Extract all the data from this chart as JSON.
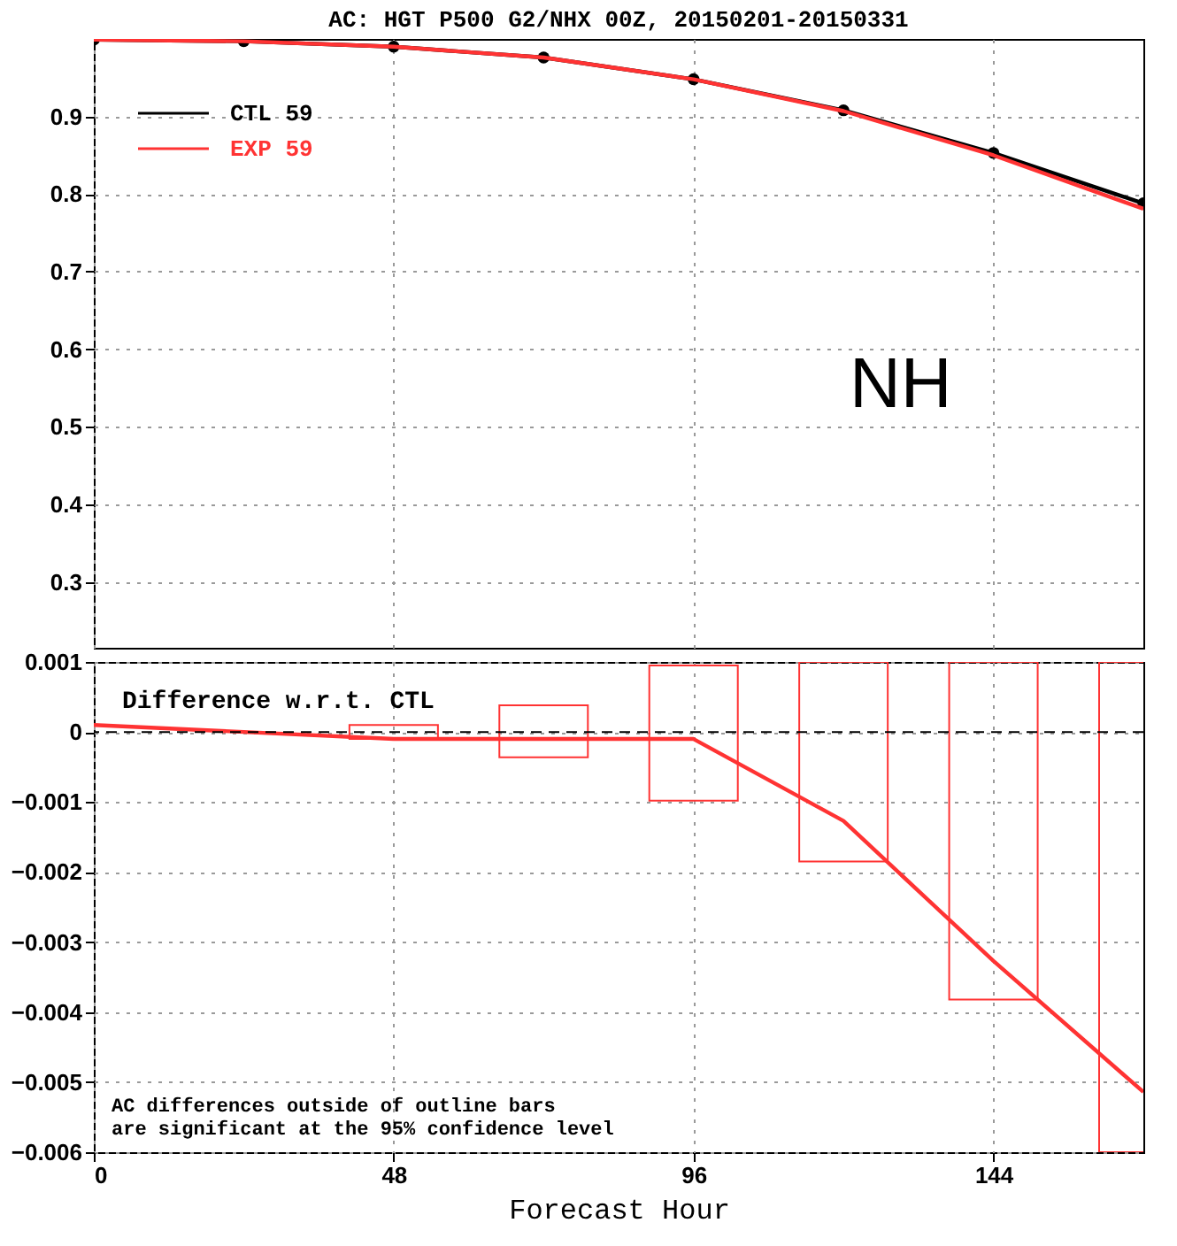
{
  "chart_data": [
    {
      "type": "line",
      "title": "AC: HGT P500 G2/NHX 00Z, 20150201-20150331",
      "x": [
        0,
        24,
        48,
        72,
        96,
        120,
        144,
        168
      ],
      "xlim": [
        0,
        168
      ],
      "xticks": [
        0,
        48,
        96,
        144
      ],
      "ylim": [
        0.215,
        1.0
      ],
      "yticks": [
        0.3,
        0.4,
        0.5,
        0.6,
        0.7,
        0.8,
        0.9
      ],
      "grid": true,
      "tick_labels": "y",
      "legend": "top left",
      "annotations": [
        "NH"
      ],
      "series": [
        {
          "name": "CTL  59",
          "color": "#000000",
          "marker": "circle",
          "values": [
            0.999,
            0.997,
            0.99,
            0.976,
            0.948,
            0.908,
            0.853,
            0.788
          ]
        },
        {
          "name": "EXP  59",
          "color": "#ff3333",
          "values": [
            0.999,
            0.997,
            0.99,
            0.976,
            0.948,
            0.907,
            0.85,
            0.781
          ]
        }
      ]
    },
    {
      "type": "line",
      "xlabel": "Forecast Hour",
      "x": [
        0,
        24,
        48,
        72,
        96,
        120,
        144,
        168
      ],
      "xlim": [
        0,
        168
      ],
      "xticks": [
        0,
        48,
        96,
        144
      ],
      "ylim": [
        -0.006,
        0.001
      ],
      "yticks": [
        0.001,
        0,
        -0.001,
        -0.002,
        -0.003,
        -0.004,
        -0.005,
        -0.006
      ],
      "grid": true,
      "ref_lines": [
        {
          "axis": "y",
          "value": 0,
          "color": "#000000",
          "line_style": "dashed"
        }
      ],
      "annotations": [
        "Difference w.r.t. CTL",
        "AC differences outside of outline bars\nare significant at the 95% confidence level"
      ],
      "series": [
        {
          "color": "#ff3333",
          "values": [
            0.0001,
            0,
            -0.0001,
            -0.0001,
            -0.0001,
            -0.00127,
            -0.00327,
            -0.00514
          ]
        },
        {
          "type": "bar",
          "color": "#ff3333",
          "x": [
            48,
            72,
            96,
            120,
            144,
            168
          ],
          "base": [
            -0.0001,
            -0.00036,
            -0.00098,
            -0.00185,
            -0.00382,
            -0.006
          ],
          "values": [
            0.0002,
            0.00074,
            0.00193,
            0.00285,
            0.00482,
            0.007
          ]
        }
      ]
    }
  ]
}
